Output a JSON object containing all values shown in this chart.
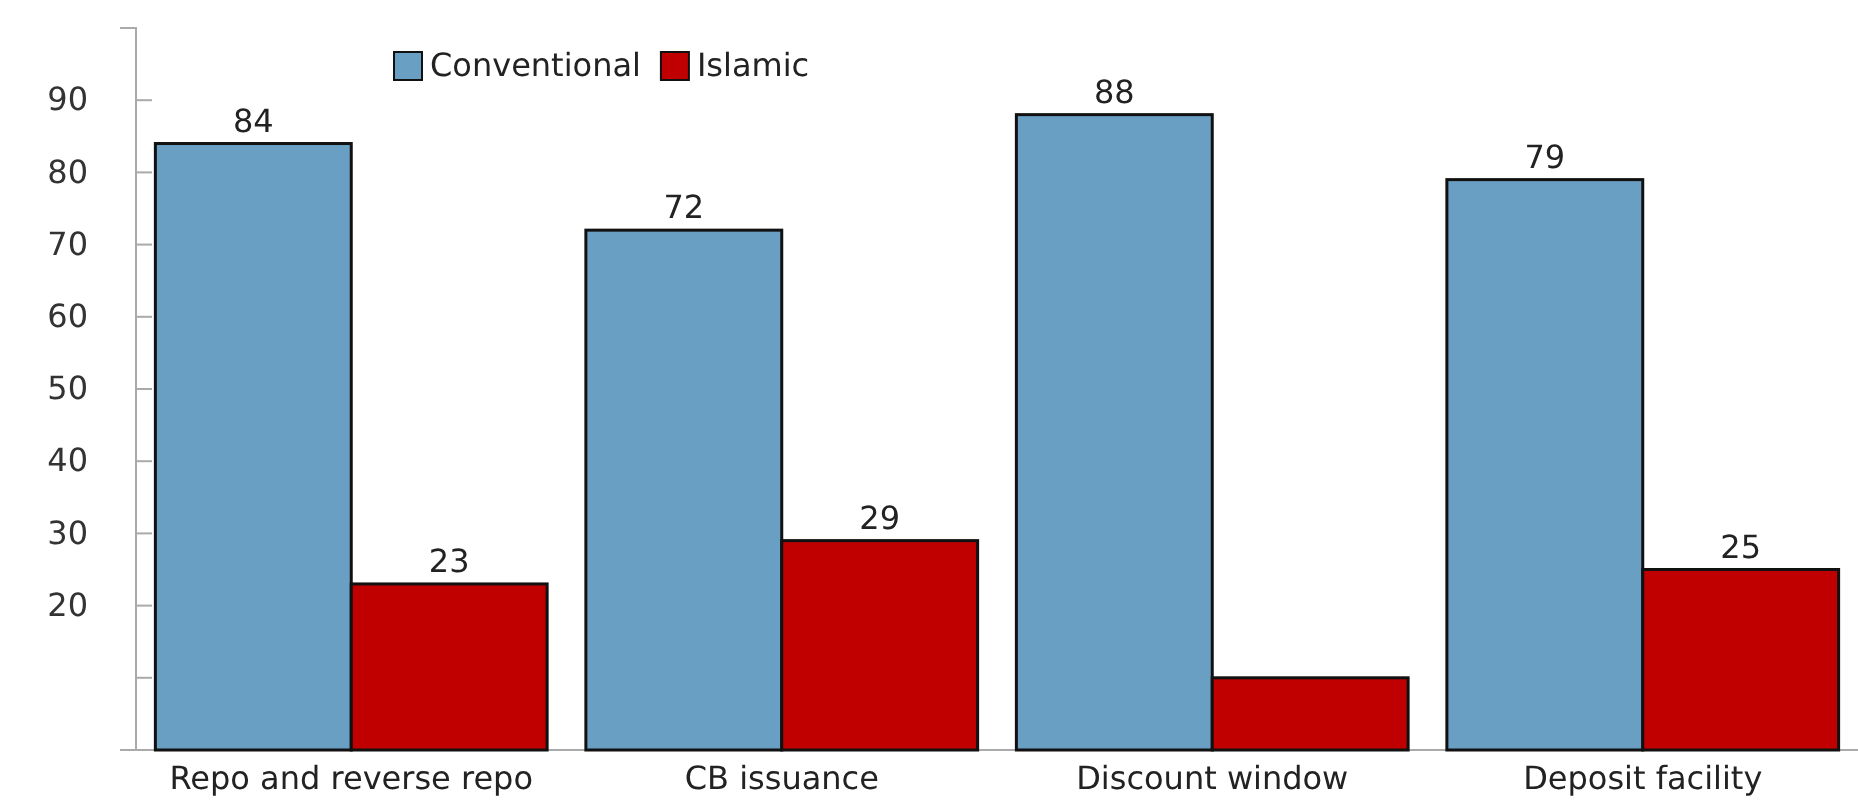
{
  "chart_data": {
    "type": "bar",
    "categories": [
      "Repo and reverse repo",
      "CB issuance",
      "Discount window",
      "Deposit facility"
    ],
    "series": [
      {
        "name": "Conventional",
        "color": "#6a9fc4",
        "values": [
          84,
          72,
          88,
          79
        ],
        "value_labels": [
          "84",
          "72",
          "88",
          "79"
        ]
      },
      {
        "name": "Islamic",
        "color": "#c00000",
        "values": [
          23,
          29,
          10,
          25
        ],
        "value_labels": [
          "23",
          "29",
          null,
          "25"
        ]
      }
    ],
    "ylim": [
      0,
      100
    ],
    "yticks": [
      {
        "value": 10,
        "label": null
      },
      20,
      30,
      40,
      50,
      60,
      70,
      80,
      90
    ],
    "grid": false,
    "legend": "top left"
  }
}
